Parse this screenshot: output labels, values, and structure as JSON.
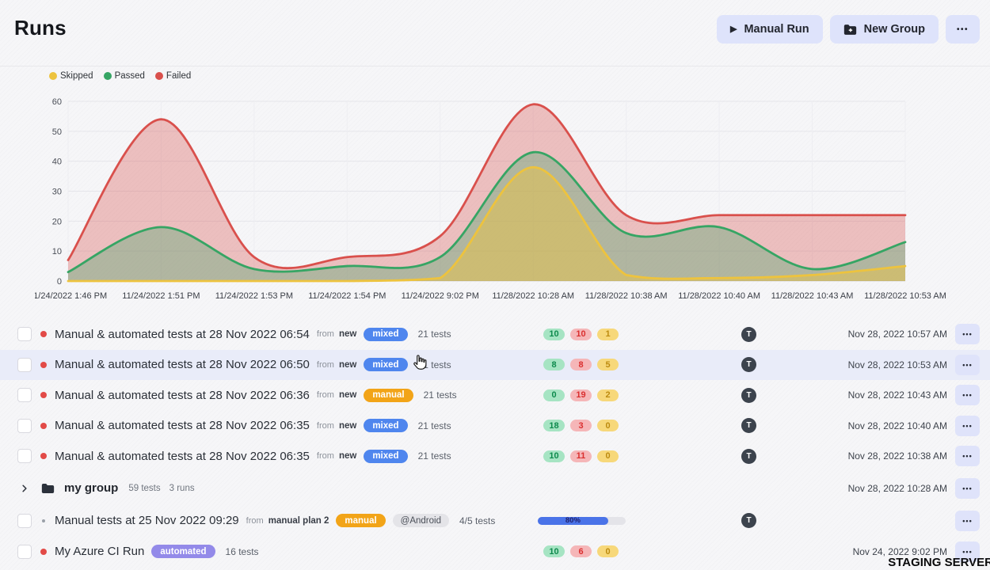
{
  "header": {
    "title": "Runs",
    "buttons": {
      "manual_run": {
        "label": "Manual Run",
        "icon": "▶"
      },
      "new_group": {
        "label": "New Group"
      },
      "more": {
        "icon": "•••"
      }
    }
  },
  "legend": {
    "items": [
      {
        "label": "Skipped",
        "color": "#edc33e"
      },
      {
        "label": "Passed",
        "color": "#36a564"
      },
      {
        "label": "Failed",
        "color": "#d9504c"
      }
    ]
  },
  "chart_data": {
    "type": "area",
    "x": [
      "11/24/2022 1:46 PM",
      "11/24/2022 1:51 PM",
      "11/24/2022 1:53 PM",
      "11/24/2022 1:54 PM",
      "11/24/2022 9:02 PM",
      "11/28/2022 10:28 AM",
      "11/28/2022 10:38 AM",
      "11/28/2022 10:40 AM",
      "11/28/2022 10:43 AM",
      "11/28/2022 10:53 AM"
    ],
    "series": [
      {
        "name": "Failed",
        "color": "#d9504c",
        "values": [
          7,
          54,
          8,
          8,
          15,
          59,
          22,
          22,
          22,
          22
        ]
      },
      {
        "name": "Passed",
        "color": "#36a564",
        "values": [
          3,
          18,
          4,
          5,
          8,
          43,
          16,
          18,
          4,
          13
        ]
      },
      {
        "name": "Skipped",
        "color": "#edc33e",
        "values": [
          0,
          0,
          0,
          0,
          1,
          38,
          2,
          1,
          2,
          5
        ]
      }
    ],
    "ylim": [
      0,
      60
    ],
    "yticks": [
      0,
      10,
      20,
      30,
      40,
      50,
      60
    ],
    "grid": true,
    "legend_position": "top-left"
  },
  "icons": {
    "ellipsis": "•••"
  },
  "rows": [
    {
      "type": "run",
      "highlighted": false,
      "dot": "red",
      "title": "Manual & automated tests at 28 Nov 2022 06:54",
      "from_label": "from",
      "from_plan": "new",
      "badge": {
        "label": "mixed",
        "bg": "#4f86ee"
      },
      "tags": [],
      "tests": "21 tests",
      "counts": {
        "passed": "10",
        "failed": "10",
        "skipped": "1"
      },
      "avatar": "T",
      "date": "Nov 28, 2022 10:57 AM"
    },
    {
      "type": "run",
      "highlighted": true,
      "dot": "red",
      "title": "Manual & automated tests at 28 Nov 2022 06:50",
      "from_label": "from",
      "from_plan": "new",
      "badge": {
        "label": "mixed",
        "bg": "#4f86ee"
      },
      "tags": [],
      "tests": "21 tests",
      "counts": {
        "passed": "8",
        "failed": "8",
        "skipped": "5"
      },
      "avatar": "T",
      "date": "Nov 28, 2022 10:53 AM"
    },
    {
      "type": "run",
      "highlighted": false,
      "dot": "red",
      "title": "Manual & automated tests at 28 Nov 2022 06:36",
      "from_label": "from",
      "from_plan": "new",
      "badge": {
        "label": "manual",
        "bg": "#f2a418"
      },
      "tags": [],
      "tests": "21 tests",
      "counts": {
        "passed": "0",
        "failed": "19",
        "skipped": "2"
      },
      "avatar": "T",
      "date": "Nov 28, 2022 10:43 AM"
    },
    {
      "type": "run",
      "highlighted": false,
      "dot": "red",
      "title": "Manual & automated tests at 28 Nov 2022 06:35",
      "from_label": "from",
      "from_plan": "new",
      "badge": {
        "label": "mixed",
        "bg": "#4f86ee"
      },
      "tags": [],
      "tests": "21 tests",
      "counts": {
        "passed": "18",
        "failed": "3",
        "skipped": "0"
      },
      "avatar": "T",
      "date": "Nov 28, 2022 10:40 AM"
    },
    {
      "type": "run",
      "highlighted": false,
      "dot": "red",
      "title": "Manual & automated tests at 28 Nov 2022 06:35",
      "from_label": "from",
      "from_plan": "new",
      "badge": {
        "label": "mixed",
        "bg": "#4f86ee"
      },
      "tags": [],
      "tests": "21 tests",
      "counts": {
        "passed": "10",
        "failed": "11",
        "skipped": "0"
      },
      "avatar": "T",
      "date": "Nov 28, 2022 10:38 AM"
    },
    {
      "type": "group",
      "name": "my group",
      "tests": "59 tests",
      "runs": "3 runs",
      "date": "Nov 28, 2022 10:28 AM"
    },
    {
      "type": "run",
      "highlighted": false,
      "dot": "gray",
      "title": "Manual tests at 25 Nov 2022 09:29",
      "from_label": "from",
      "from_plan": "manual plan 2",
      "badge": {
        "label": "manual",
        "bg": "#f2a418"
      },
      "tags": [
        "@Android"
      ],
      "tests": "4/5 tests",
      "progress": {
        "percent": 80,
        "label": "80%"
      },
      "avatar": "T",
      "date": ""
    },
    {
      "type": "run",
      "highlighted": false,
      "dot": "red",
      "title": "My Azure CI Run",
      "badge": {
        "label": "automated",
        "bg": "#938ae9"
      },
      "tags": [],
      "tests": "16 tests",
      "counts": {
        "passed": "10",
        "failed": "6",
        "skipped": "0"
      },
      "date": "Nov 24, 2022 9:02 PM"
    }
  ],
  "watermark": {
    "text": "STAGING SERVER"
  }
}
